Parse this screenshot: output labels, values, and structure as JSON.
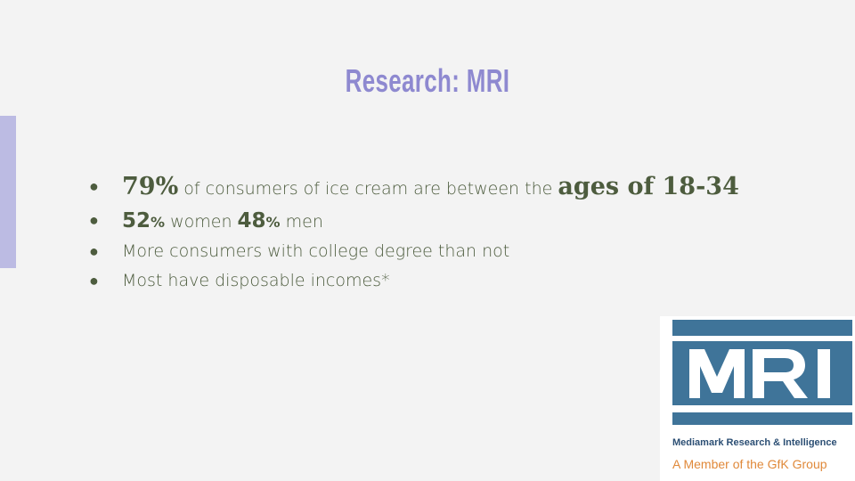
{
  "slide": {
    "title": "Research: MRI",
    "colors": {
      "title": "#8e89d0",
      "accent_bar": "#bcbbe3",
      "body_text": "#4d5c3e",
      "logo_blue": "#3f7499",
      "logo_orange": "#e0893a"
    },
    "bullets": [
      {
        "stat": "79%",
        "text": " of consumers of ice cream are between the ",
        "emphasis": "ages of 18-34"
      },
      {
        "stat_a": "52",
        "stat_a_unit": "%",
        "text_a": " women ",
        "stat_b": "48",
        "stat_b_unit": "%",
        "text_b": " men"
      },
      {
        "text": "More consumers with college degree than not"
      },
      {
        "text": "Most have disposable incomes*"
      }
    ],
    "logo": {
      "letters": "MRI",
      "line1": "Mediamark Research & Intelligence",
      "line2": "A Member of the GfK Group"
    }
  }
}
